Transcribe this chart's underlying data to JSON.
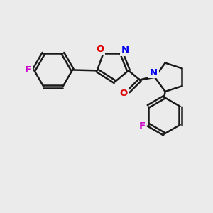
{
  "bg_color": "#ebebeb",
  "bond_color": "#1a1a1a",
  "bond_width": 1.8,
  "dbo": 0.07,
  "atom_colors": {
    "F": "#cc00cc",
    "O": "#dd0000",
    "N": "#0000ee",
    "C": "#1a1a1a"
  },
  "fs": 9.5
}
